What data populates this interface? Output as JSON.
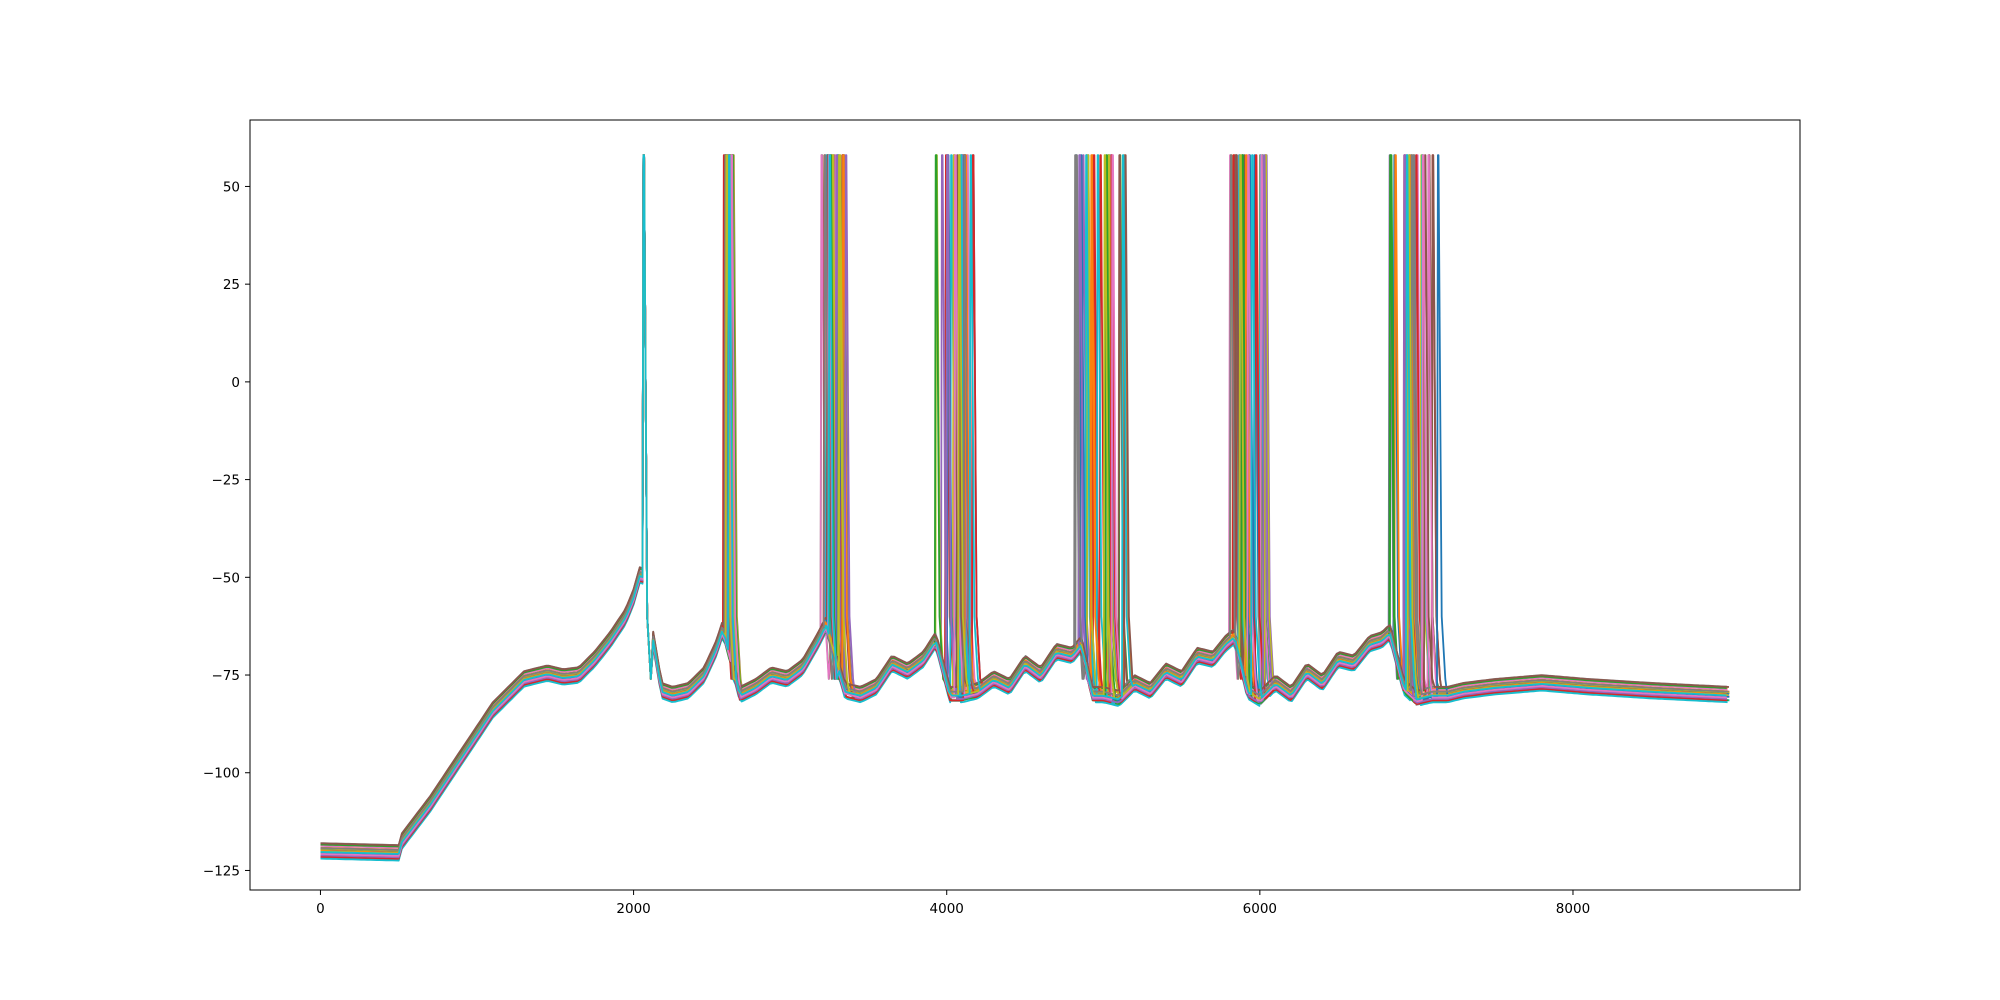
{
  "chart_data": {
    "type": "line",
    "title": "",
    "xlabel": "",
    "ylabel": "",
    "xlim": [
      -450,
      9450
    ],
    "ylim": [
      -130,
      67
    ],
    "grid": false,
    "legend": "none",
    "xticks": [
      0,
      2000,
      4000,
      6000,
      8000
    ],
    "xtick_labels": [
      "0",
      "2000",
      "4000",
      "6000",
      "8000"
    ],
    "yticks": [
      50,
      25,
      0,
      -25,
      -50,
      -75,
      -100,
      -125
    ],
    "ytick_labels": [
      "50",
      "25",
      "0",
      "−25",
      "−50",
      "−75",
      "−100",
      "−125"
    ],
    "palette": [
      "#1f77b4",
      "#ff7f0e",
      "#2ca02c",
      "#d62728",
      "#9467bd",
      "#8c564b",
      "#e377c2",
      "#7f7f7f",
      "#bcbd22",
      "#17becf"
    ],
    "spike_peak": 58,
    "n_traces": 30,
    "base_trace": {
      "x": [
        0,
        500,
        510,
        700,
        900,
        1100,
        1300,
        1450,
        1550,
        1650,
        1750,
        1850,
        1950,
        2000,
        2050,
        2180,
        2250,
        2350,
        2450,
        2530,
        2570,
        2680,
        2780,
        2880,
        2980,
        3080,
        3180,
        3230,
        3350,
        3450,
        3550,
        3650,
        3750,
        3850,
        3930,
        4020,
        4100,
        4200,
        4300,
        4400,
        4500,
        4600,
        4700,
        4800,
        4860,
        4930,
        5000,
        5100,
        5200,
        5300,
        5400,
        5500,
        5600,
        5700,
        5780,
        5840,
        5920,
        6000,
        6100,
        6200,
        6300,
        6400,
        6500,
        6600,
        6700,
        6780,
        6830,
        6920,
        7000,
        7100,
        7200,
        7300,
        7500,
        7800,
        8100,
        8500,
        9000
      ],
      "y": [
        -120,
        -120.5,
        -118,
        -108,
        -96,
        -84,
        -76,
        -74.5,
        -75.5,
        -75,
        -71,
        -66,
        -60,
        -55,
        -48,
        -79,
        -80,
        -79,
        -75,
        -68,
        -63,
        -80,
        -78,
        -75,
        -76,
        -73,
        -66,
        -62,
        -79,
        -80,
        -78,
        -72,
        -74,
        -71,
        -66,
        -80,
        -80,
        -79,
        -76,
        -78,
        -72,
        -75,
        -69,
        -70,
        -67,
        -80,
        -80,
        -81,
        -77,
        -79,
        -74,
        -76,
        -70,
        -71,
        -67,
        -65,
        -79,
        -81,
        -77,
        -80,
        -74,
        -77,
        -71,
        -72,
        -67,
        -66,
        -64,
        -78,
        -81,
        -80,
        -80,
        -79,
        -78,
        -77,
        -78,
        -79,
        -80
      ],
      "spike_windows": [
        {
          "x": 2065,
          "x_min": 2065,
          "x_max": 2075
        },
        {
          "x": 2590,
          "x_min": 2570,
          "x_max": 2640
        },
        {
          "x": 3260,
          "x_min": 3200,
          "x_max": 3370
        },
        {
          "x": 4020,
          "x_min": 3930,
          "x_max": 4170
        },
        {
          "x": 4930,
          "x_min": 4820,
          "x_max": 5150
        },
        {
          "x": 5880,
          "x_min": 5780,
          "x_max": 6060
        },
        {
          "x": 6960,
          "x_min": 6800,
          "x_max": 7150
        }
      ]
    }
  }
}
